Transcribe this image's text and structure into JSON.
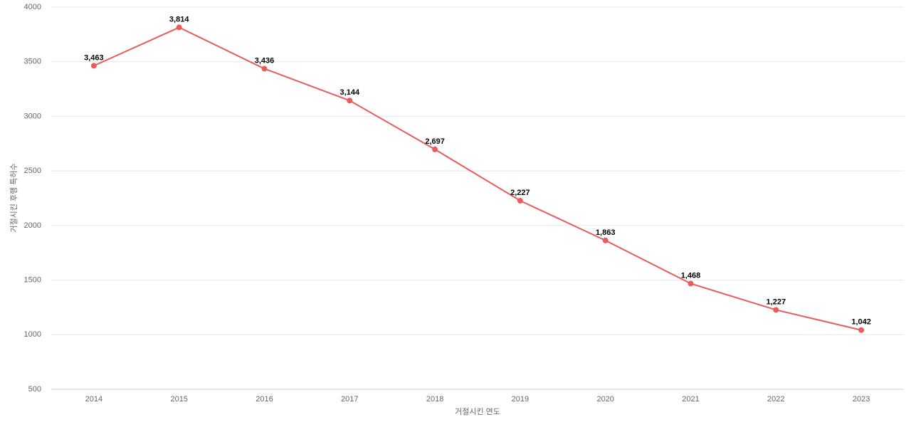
{
  "chart_data": {
    "type": "line",
    "categories": [
      "2014",
      "2015",
      "2016",
      "2017",
      "2018",
      "2019",
      "2020",
      "2021",
      "2022",
      "2023"
    ],
    "series": [
      {
        "name": "거절시킨 후행 특허수",
        "color": "#e85c5c",
        "values": [
          3463,
          3814,
          3436,
          3144,
          2697,
          2227,
          1863,
          1468,
          1227,
          1042
        ],
        "value_labels": [
          "3,463",
          "3,814",
          "3,436",
          "3,144",
          "2,697",
          "2,227",
          "1,863",
          "1,468",
          "1,227",
          "1,042"
        ]
      }
    ],
    "ylim": [
      500,
      4000
    ],
    "yticks": [
      500,
      1000,
      1500,
      2000,
      2500,
      3000,
      3500,
      4000
    ],
    "grid": true,
    "x_label": "거절시킨 연도",
    "y_label": "거절시킨 후행 특허수"
  }
}
